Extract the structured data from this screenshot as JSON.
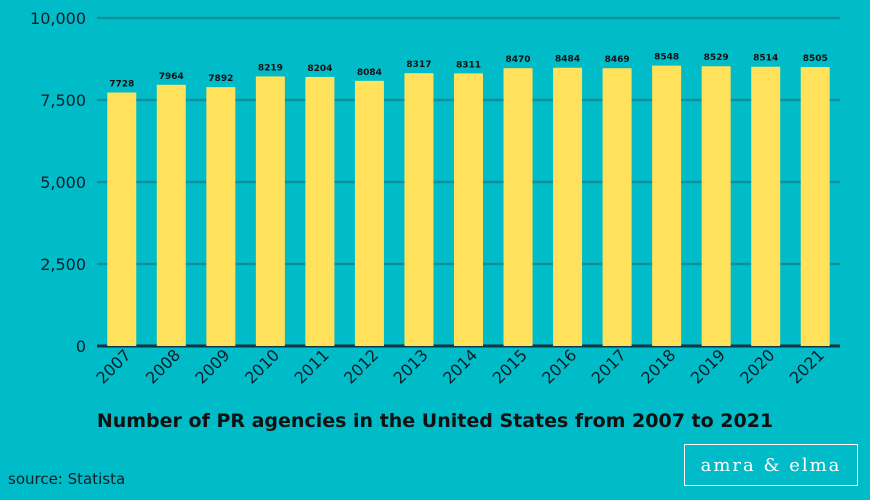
{
  "chart_data": {
    "type": "bar",
    "title": "Number of PR agencies in the United States from 2007 to 2021",
    "categories": [
      "2007",
      "2008",
      "2009",
      "2010",
      "2011",
      "2012",
      "2013",
      "2014",
      "2015",
      "2016",
      "2017",
      "2018",
      "2019",
      "2020",
      "2021"
    ],
    "values": [
      7728,
      7964,
      7892,
      8219,
      8204,
      8084,
      8317,
      8311,
      8470,
      8484,
      8469,
      8548,
      8529,
      8514,
      8505
    ],
    "data_labels": [
      "7728",
      "7964",
      "7892",
      "8219",
      "8204",
      "8084",
      "8317",
      "8311",
      "8470",
      "8484",
      "8469",
      "8548",
      "8529",
      "8514",
      "8505"
    ],
    "ylim": [
      0,
      10000
    ],
    "yticks": [
      0,
      2500,
      5000,
      7500,
      10000
    ],
    "ytick_labels": [
      "0",
      "2,500",
      "5,000",
      "7,500",
      "10,000"
    ],
    "grid": true,
    "xlabel": "",
    "ylabel": ""
  },
  "colors": {
    "background": "#00bcc9",
    "bar": "#ffe15c",
    "grid": "#0e8f99",
    "axis": "#103544"
  },
  "footer": {
    "source": "source: Statista",
    "brand": "amra & elma"
  }
}
